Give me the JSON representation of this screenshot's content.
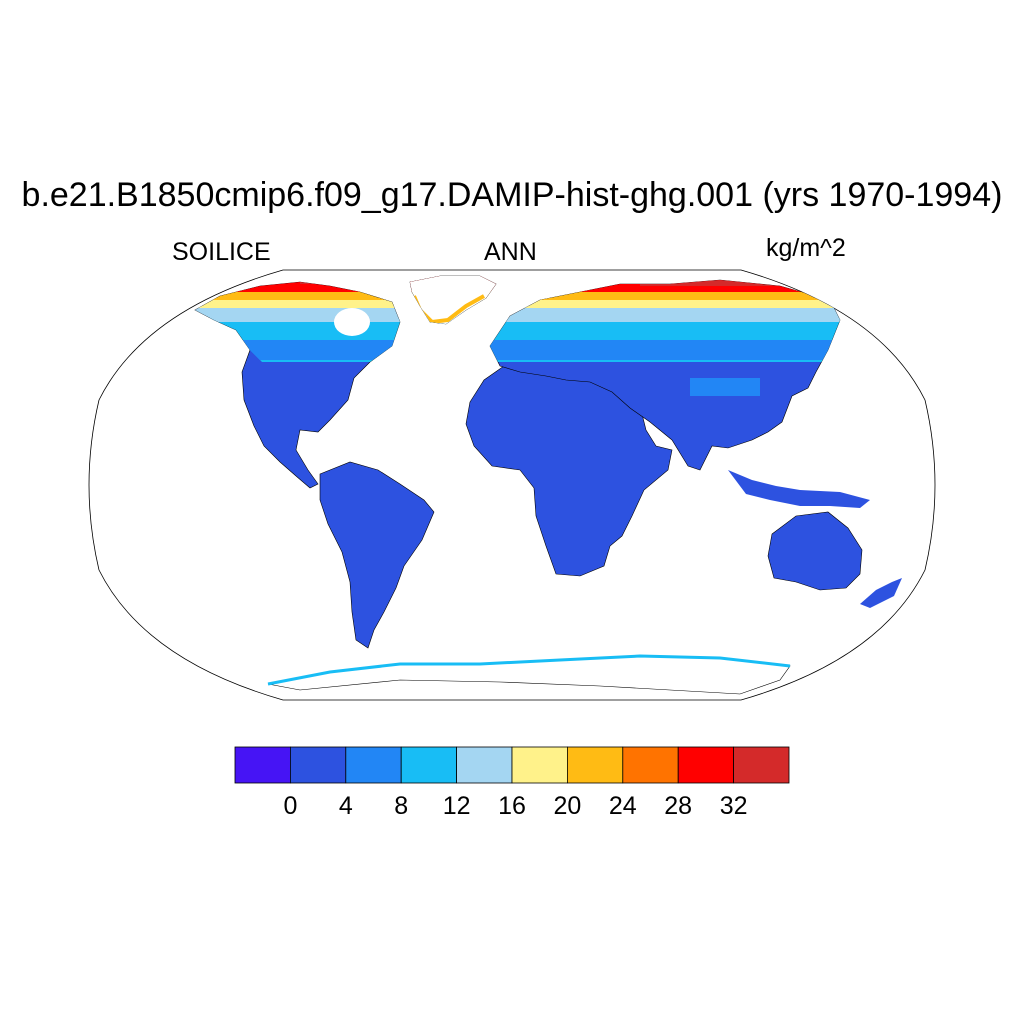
{
  "title": "b.e21.B1850cmip6.f09_g17.DAMIP-hist-ghg.001 (yrs 1970-1994)",
  "left_label": "SOILICE",
  "center_label": "ANN",
  "right_label": "kg/m^2",
  "colorbar": {
    "colors": [
      "#4614f5",
      "#2d52e0",
      "#2286f5",
      "#18bdf5",
      "#a4d6f2",
      "#fff28a",
      "#ffbb14",
      "#ff7300",
      "#ff0000",
      "#d42a2a"
    ],
    "tick_labels": [
      "0",
      "4",
      "8",
      "12",
      "16",
      "20",
      "24",
      "28",
      "32"
    ]
  },
  "map": {
    "projection": "Robinson",
    "land_base_color": "#2d52e0",
    "ocean_color": "#ffffff"
  }
}
